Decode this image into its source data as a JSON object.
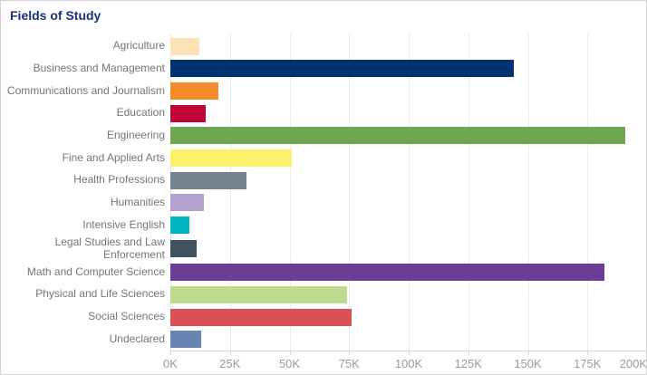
{
  "chart_data": {
    "type": "bar",
    "orientation": "horizontal",
    "title": "Fields of Study",
    "categories": [
      "Agriculture",
      "Business and Management",
      "Communications and Journalism",
      "Education",
      "Engineering",
      "Fine and Applied Arts",
      "Health Professions",
      "Humanities",
      "Intensive English",
      "Legal Studies and Law Enforcement",
      "Math and Computer Science",
      "Physical and Life Sciences",
      "Social Sciences",
      "Undeclared"
    ],
    "values": [
      12,
      144,
      20,
      15,
      191,
      51,
      32,
      14,
      8,
      11,
      182,
      74,
      76,
      13
    ],
    "values_unit": "thousands",
    "bar_colors": [
      "#fbe3b5",
      "#003271",
      "#f28c29",
      "#c00534",
      "#6ea751",
      "#fbf16b",
      "#75838f",
      "#b4a1d0",
      "#00b6c2",
      "#3e5260",
      "#6b3d96",
      "#bdda8d",
      "#d95057",
      "#6884b3"
    ],
    "x_ticks": [
      "0K",
      "25K",
      "50K",
      "75K",
      "100K",
      "125K",
      "150K",
      "175K",
      "200K"
    ],
    "xlim": [
      0,
      200
    ],
    "xlabel": "",
    "ylabel": "",
    "grid": "vertical",
    "legend": "none",
    "colors": {
      "title": "#16317e",
      "category_label": "#757575",
      "tick_label": "#9a9a9a",
      "gridline": "#ebebeb",
      "axis_line": "#d9d9d9",
      "card_border": "#d2d2d2",
      "background": "#ffffff"
    }
  }
}
